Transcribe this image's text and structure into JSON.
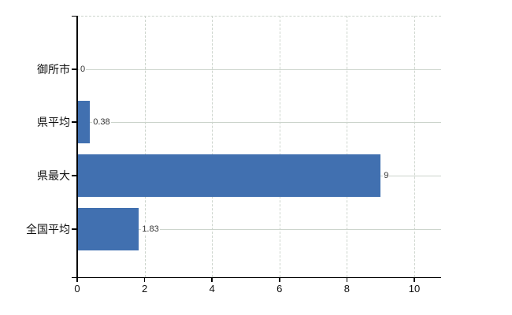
{
  "chart_data": {
    "type": "bar",
    "orientation": "horizontal",
    "title": "",
    "categories": [
      "御所市",
      "県平均",
      "県最大",
      "全国平均"
    ],
    "values": [
      0,
      0.38,
      9,
      1.83
    ],
    "value_labels": [
      "0",
      "0.38",
      "9",
      "1.83"
    ],
    "x_ticks": [
      0,
      2,
      4,
      6,
      8,
      10
    ],
    "x_tick_labels": [
      "0",
      "2",
      "4",
      "6",
      "8",
      "10"
    ],
    "xlim": [
      0,
      10.8
    ],
    "grid": true,
    "legend_position": "none",
    "colors": {
      "bar": "#4170b0",
      "gridline": "#ccd4cc",
      "axis": "#000000",
      "text": "#111111",
      "value_text": "#333333",
      "background": "#ffffff"
    }
  }
}
